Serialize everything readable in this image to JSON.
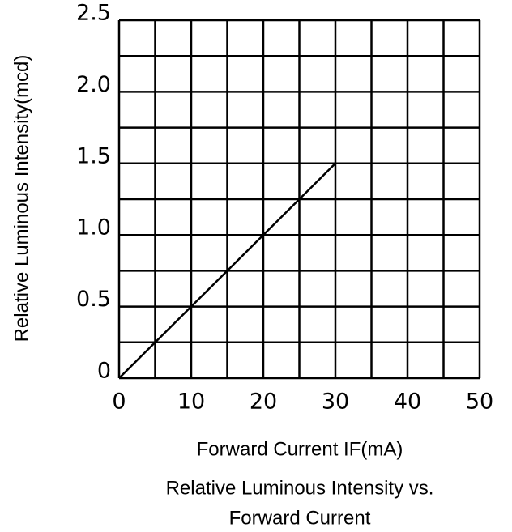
{
  "chart_data": {
    "type": "line",
    "title": [
      "Relative Luminous Intensity vs.",
      "Forward Current"
    ],
    "xlabel": "Forward Current IF(mA)",
    "ylabel": "Relative Luminous Intensity(mcd)",
    "x": [
      0,
      30
    ],
    "series": [
      {
        "name": null,
        "color": "#000000",
        "values": [
          0,
          1.5
        ]
      }
    ],
    "xlim": [
      0,
      50
    ],
    "xticks": [
      0,
      10,
      20,
      30,
      40,
      50
    ],
    "ylim": [
      0,
      2.5
    ],
    "yticks": [
      0,
      0.5,
      {
        "value": 1,
        "label": "1.0"
      },
      1.5,
      {
        "value": 2,
        "label": "2.0"
      },
      2.5
    ],
    "xgrid": [
      0,
      5,
      10,
      15,
      20,
      25,
      30,
      35,
      40,
      45,
      50
    ],
    "ygrid": [
      0,
      0.25,
      0.5,
      0.75,
      1,
      1.25,
      1.5,
      1.75,
      2,
      2.25,
      2.5
    ],
    "grid": true
  }
}
